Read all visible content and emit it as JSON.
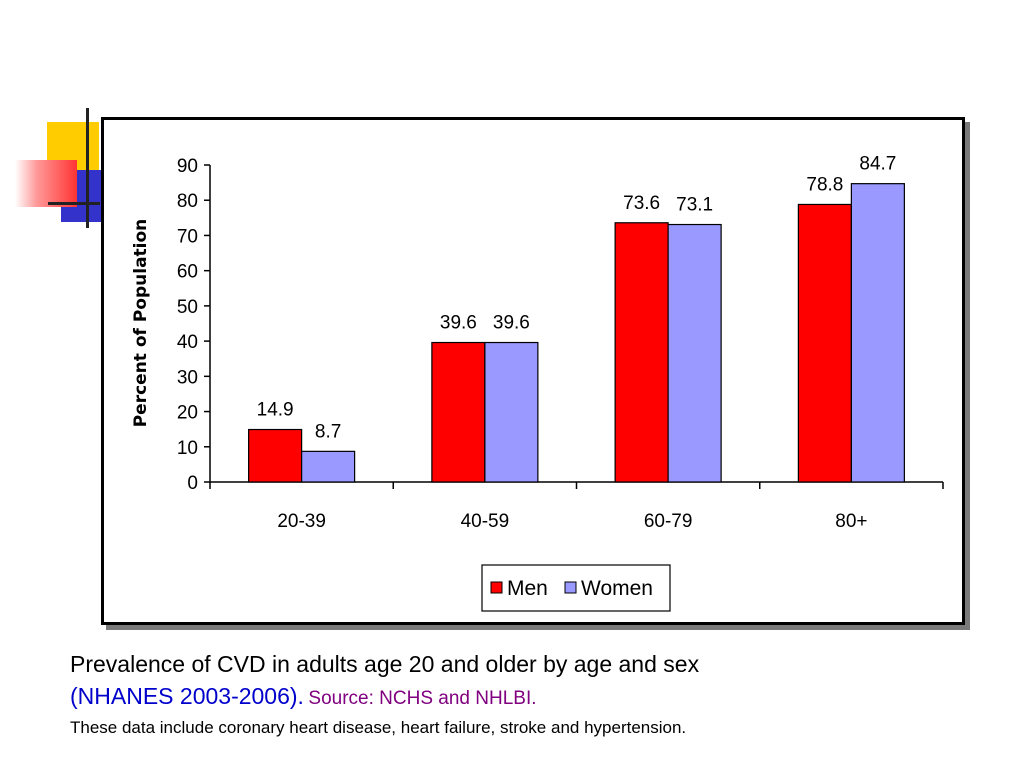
{
  "chart_data": {
    "type": "bar",
    "categories": [
      "20-39",
      "40-59",
      "60-79",
      "80+"
    ],
    "series": [
      {
        "name": "Men",
        "values": [
          14.9,
          39.6,
          73.6,
          78.8
        ],
        "color": "#ff0000"
      },
      {
        "name": "Women",
        "values": [
          8.7,
          39.6,
          73.1,
          84.7
        ],
        "color": "#9999ff"
      }
    ],
    "value_labels": [
      [
        "14.9",
        "39.6",
        "73.6",
        "78.8"
      ],
      [
        "8.7",
        "39.6",
        "73.1",
        "84.7"
      ]
    ],
    "ylabel": "Percent of Population",
    "ylim": [
      0,
      90
    ],
    "yticks": [
      0,
      10,
      20,
      30,
      40,
      50,
      60,
      70,
      80,
      90
    ],
    "ytick_labels": [
      "0",
      "10",
      "20",
      "30",
      "40",
      "50",
      "60",
      "70",
      "80",
      "90"
    ],
    "grid": false,
    "legend_position": "bottom-center"
  },
  "caption": {
    "line1": "Prevalence of CVD in adults age 20 and older by age and sex",
    "line2_paren": "(NHANES 2003-2006).",
    "line2_source": "Source: NCHS and NHLBI.",
    "line3": "These data include coronary heart disease, heart failure, stroke and hypertension."
  }
}
